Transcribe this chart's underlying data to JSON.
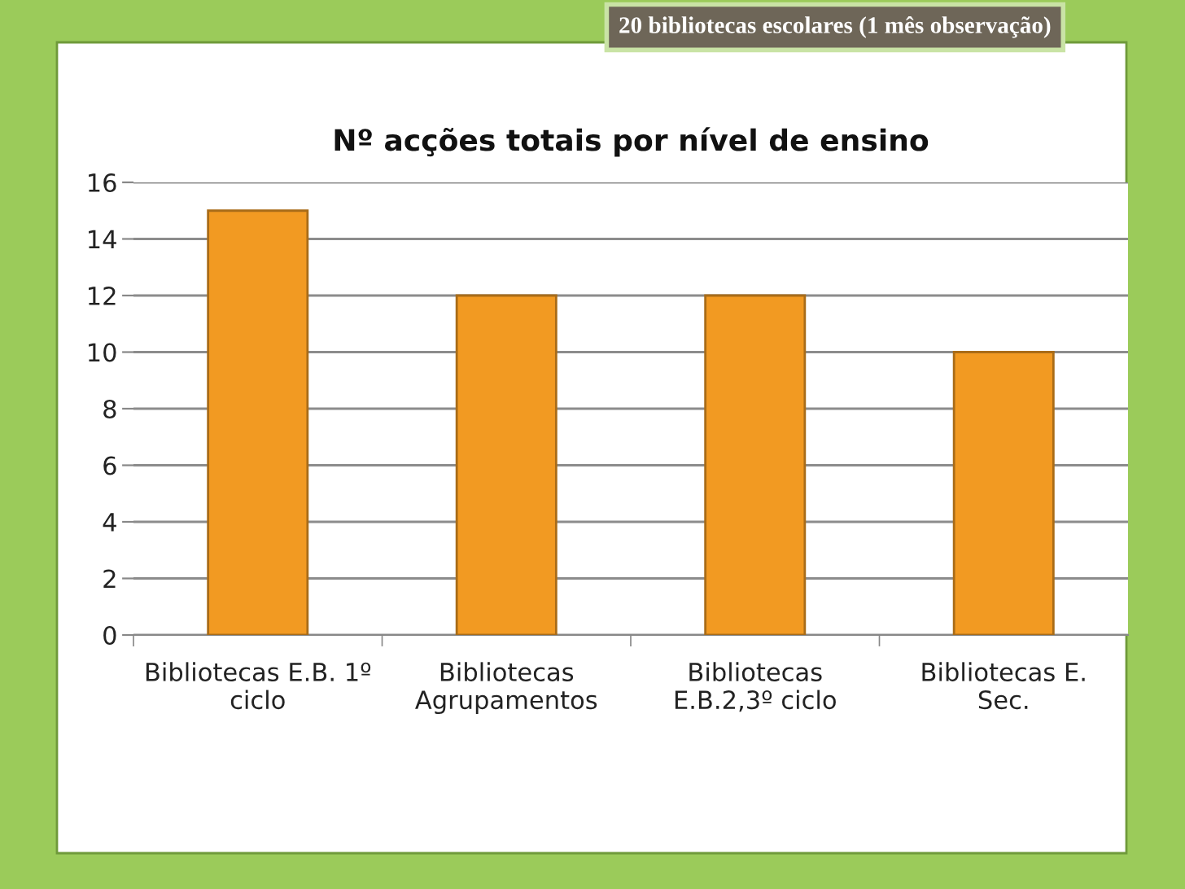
{
  "chart_data": {
    "type": "bar",
    "title": "Nº acções totais por nível de ensino",
    "categories": [
      "Bibliotecas E.B. 1º\nciclo",
      "Bibliotecas\nAgrupamentos",
      "Bibliotecas\nE.B.2,3º ciclo",
      "Bibliotecas E.\nSec."
    ],
    "values": [
      15,
      12,
      12,
      10
    ],
    "color": "#f29a22",
    "ylim": [
      0,
      16
    ],
    "yticks": [
      0,
      2,
      4,
      6,
      8,
      10,
      12,
      14,
      16
    ],
    "grid": "y",
    "annotations": [
      "20 bibliotecas escolares (1 mês observação)"
    ]
  }
}
